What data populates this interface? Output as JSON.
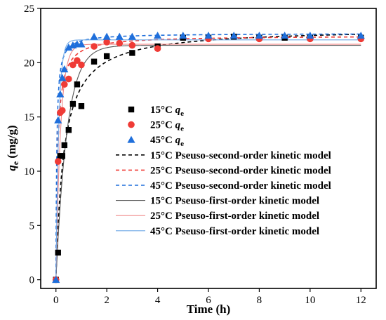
{
  "chart_data": {
    "type": "scatter",
    "xlabel": "Time (h)",
    "ylabel_main": "q",
    "ylabel_sub": "e",
    "ylabel_unit": " (mg/g)",
    "xlim": [
      -0.6,
      12.6
    ],
    "ylim": [
      -0.8,
      25
    ],
    "xticks": [
      0,
      2,
      4,
      6,
      8,
      10,
      12
    ],
    "yticks": [
      0,
      5,
      10,
      15,
      20,
      25
    ],
    "legend_position": "center-right",
    "scatter_series": [
      {
        "name": "15°C q",
        "name_sub": "e",
        "marker": "square",
        "color": "#000000",
        "x": [
          0,
          0.083,
          0.167,
          0.25,
          0.333,
          0.5,
          0.667,
          0.833,
          1.0,
          1.5,
          2.0,
          3.0,
          4.0,
          5.0,
          6.0,
          7.0,
          8.0,
          9.0,
          10.0,
          12.0
        ],
        "y": [
          0,
          2.5,
          11.4,
          11.4,
          12.4,
          13.8,
          16.2,
          18.0,
          16.0,
          20.1,
          20.6,
          20.9,
          21.5,
          22.3,
          22.3,
          22.4,
          22.3,
          22.3,
          22.3,
          22.3
        ]
      },
      {
        "name": "25°C q",
        "name_sub": "e",
        "marker": "circle",
        "color": "#ef3b36",
        "x": [
          0,
          0.083,
          0.167,
          0.25,
          0.333,
          0.5,
          0.667,
          0.833,
          1.0,
          1.5,
          2.0,
          2.5,
          3.0,
          4.0,
          6.0,
          8.0,
          10.0,
          12.0
        ],
        "y": [
          0,
          10.9,
          15.4,
          15.6,
          18.0,
          18.5,
          19.8,
          20.2,
          19.8,
          21.5,
          21.9,
          21.8,
          21.6,
          21.3,
          22.2,
          22.2,
          22.2,
          22.2
        ]
      },
      {
        "name": "45°C q",
        "name_sub": "e",
        "marker": "triangle",
        "color": "#1f6fdb",
        "x": [
          0,
          0.083,
          0.167,
          0.25,
          0.333,
          0.5,
          0.667,
          0.833,
          1.0,
          1.5,
          2.0,
          2.5,
          3.0,
          4.0,
          5.0,
          6.0,
          7.0,
          8.0,
          9.0,
          10.0,
          12.0
        ],
        "y": [
          0,
          14.7,
          17.1,
          18.6,
          19.4,
          21.4,
          21.6,
          21.7,
          21.7,
          22.4,
          22.4,
          22.4,
          22.4,
          22.5,
          22.5,
          22.5,
          22.5,
          22.5,
          22.5,
          22.5,
          22.5
        ]
      }
    ],
    "model_series": [
      {
        "name": "15°C Pseuso-second-order kinetic model",
        "model": "pso",
        "qe": 23.2,
        "k": 0.14,
        "color": "#000000",
        "dash": true
      },
      {
        "name": "25°C Pseuso-second-order kinetic model",
        "model": "pso",
        "qe": 22.5,
        "k": 0.65,
        "color": "#ef3b36",
        "dash": true
      },
      {
        "name": "45°C Pseuso-second-order kinetic model",
        "model": "pso",
        "qe": 22.7,
        "k": 1.4,
        "color": "#1f6fdb",
        "dash": true
      },
      {
        "name": "15°C Pseuso-first-order kinetic model",
        "model": "pfo",
        "qe": 21.6,
        "k": 2.3,
        "color": "#555555",
        "dash": false
      },
      {
        "name": "25°C Pseuso-first-order kinetic model",
        "model": "pfo",
        "qe": 21.7,
        "k": 5.5,
        "color": "#f08a8a",
        "dash": false
      },
      {
        "name": "45°C Pseuso-first-order kinetic model",
        "model": "pfo",
        "qe": 22.1,
        "k": 9.0,
        "color": "#6fa8e6",
        "dash": false
      }
    ]
  }
}
